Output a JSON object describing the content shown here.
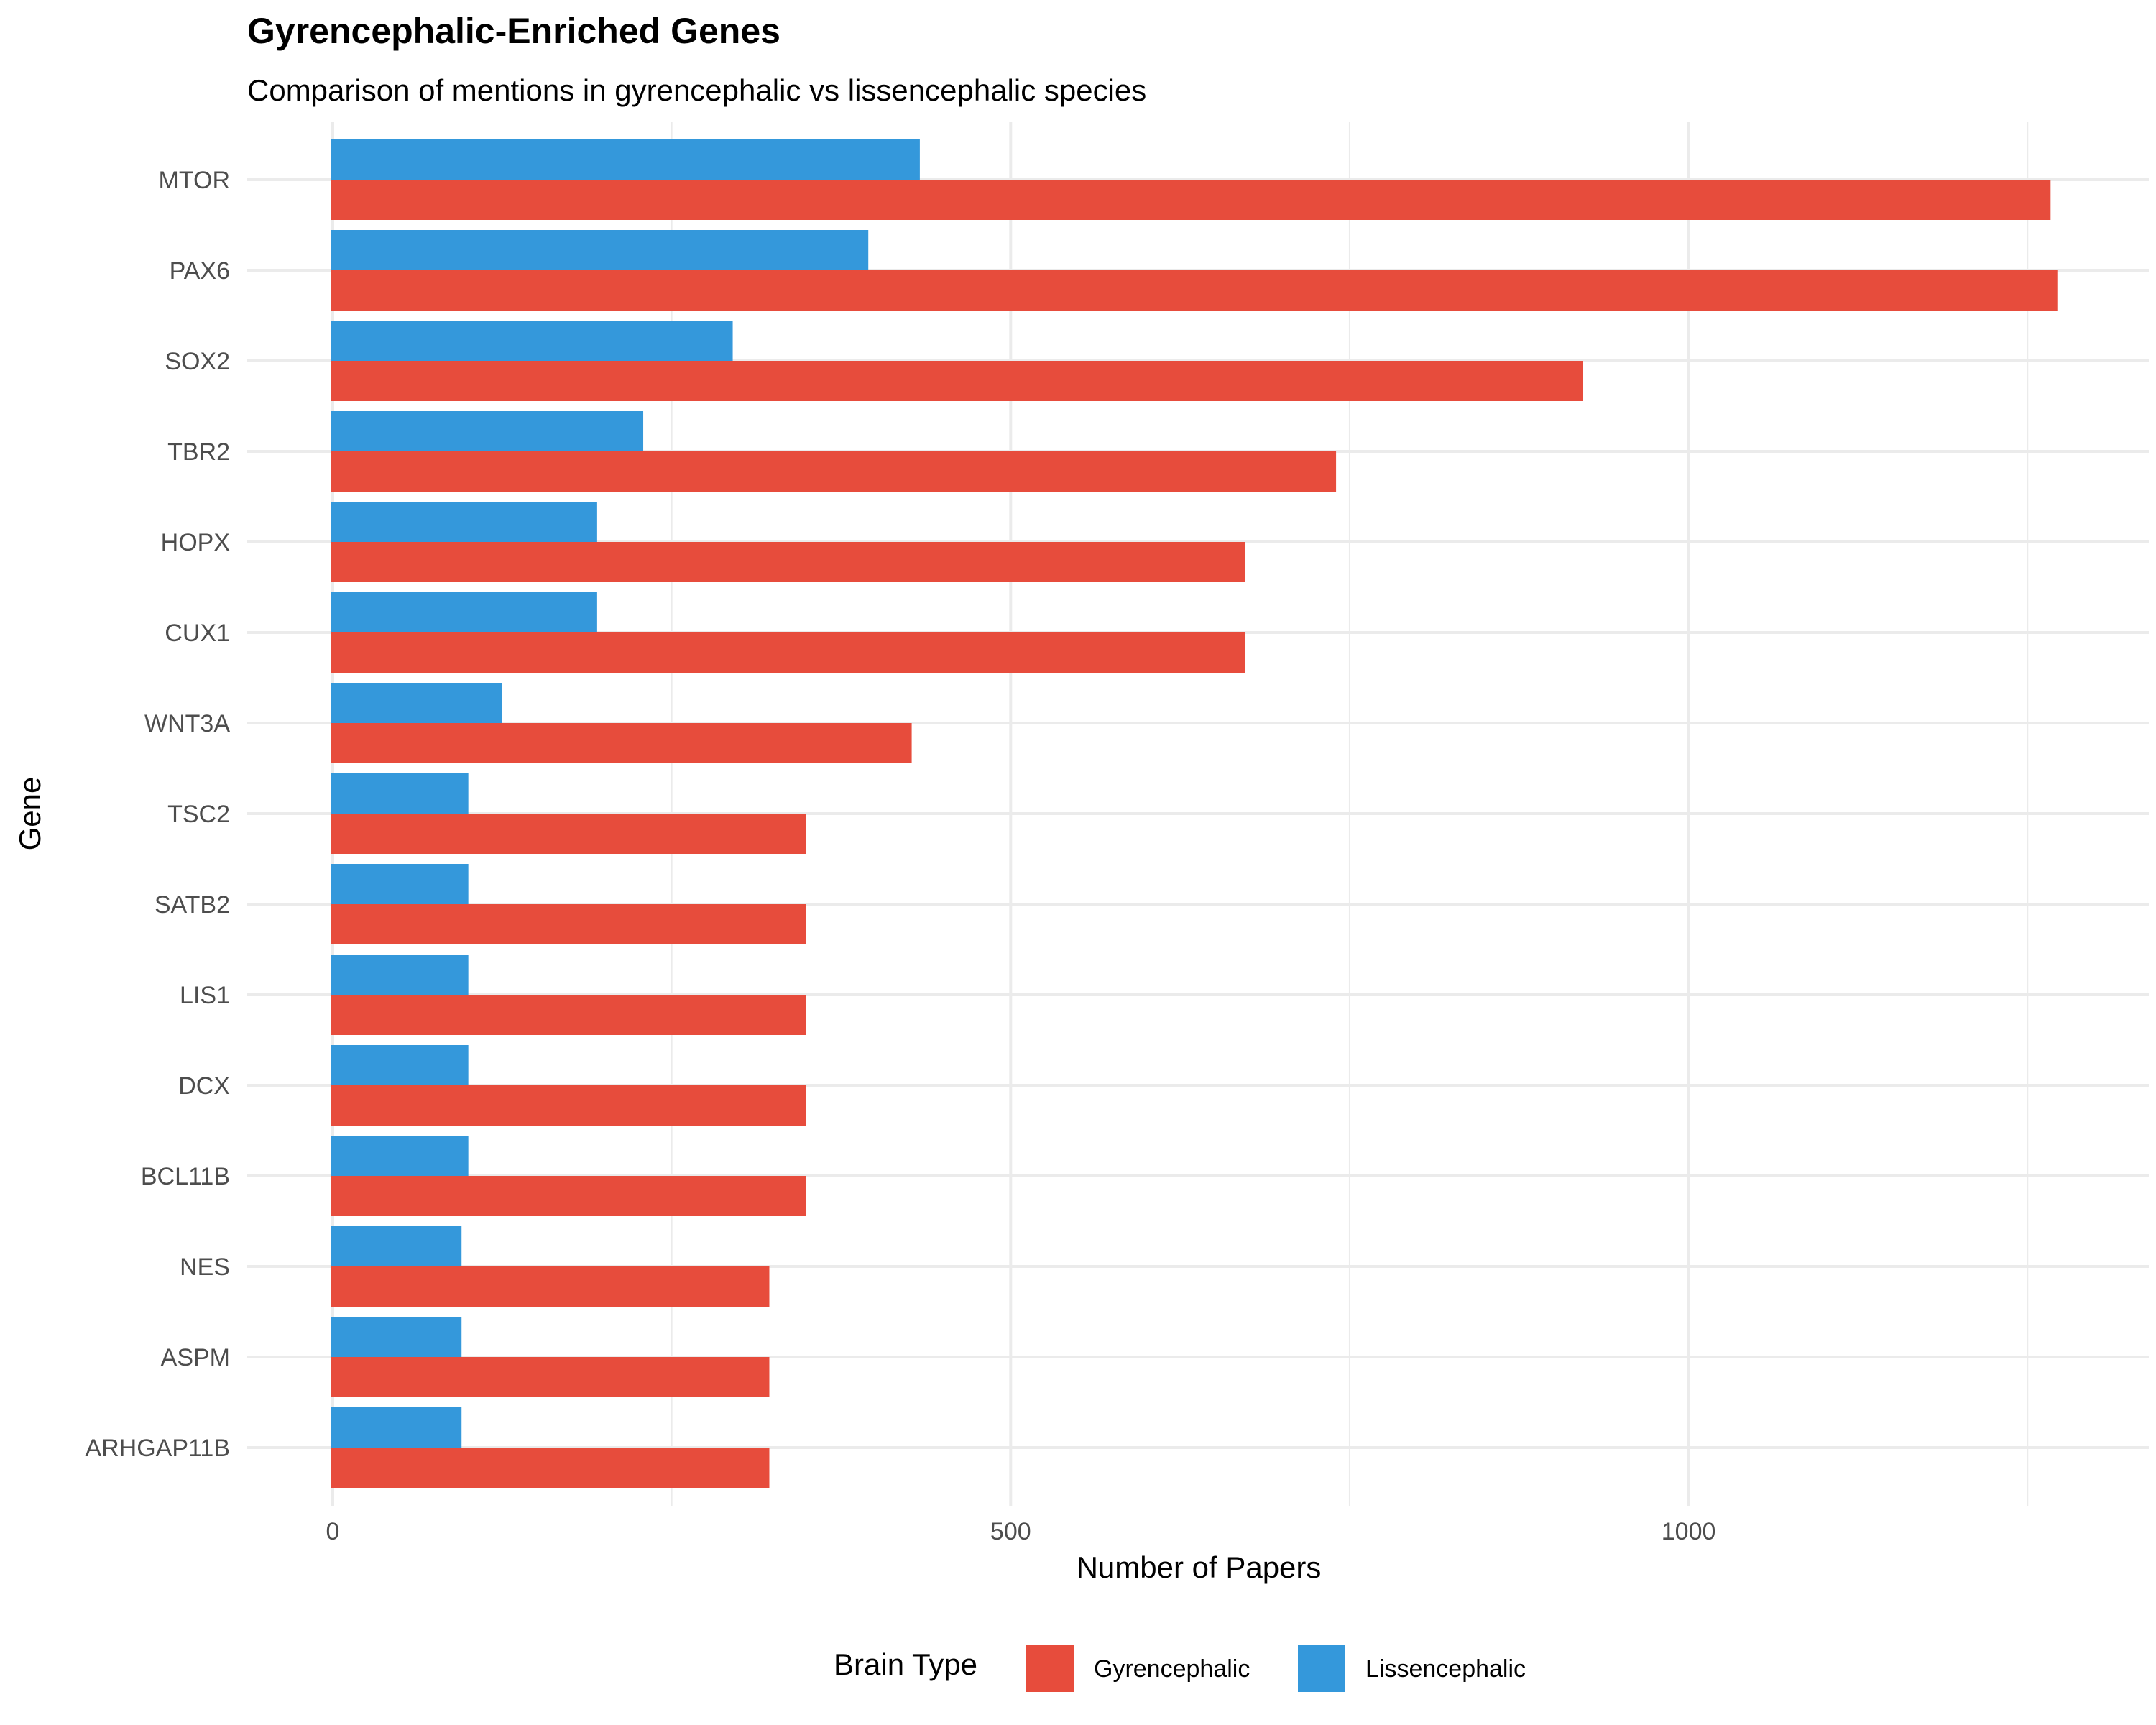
{
  "chart_data": {
    "type": "bar",
    "orientation": "horizontal",
    "title": "Gyrencephalic-Enriched Genes",
    "subtitle": "Comparison of mentions in gyrencephalic vs lissencephalic species",
    "xlabel": "Number of Papers",
    "ylabel": "Gene",
    "xlim": [
      0,
      1300
    ],
    "x_ticks": [
      0,
      500,
      1000
    ],
    "x_tick_labels": [
      "0",
      "500",
      "1000"
    ],
    "grid": true,
    "categories": [
      "MTOR",
      "PAX6",
      "SOX2",
      "TBR2",
      "HOPX",
      "CUX1",
      "WNT3A",
      "TSC2",
      "SATB2",
      "LIS1",
      "DCX",
      "BCL11B",
      "NES",
      "ASPM",
      "ARHGAP11B"
    ],
    "series": [
      {
        "name": "Gyrencephalic",
        "color": "#E74C3C",
        "values": [
          1267,
          1272,
          922,
          740,
          673,
          673,
          427,
          349,
          349,
          349,
          349,
          349,
          322,
          322,
          322
        ]
      },
      {
        "name": "Lissencephalic",
        "color": "#3498DB",
        "values": [
          433,
          395,
          295,
          229,
          195,
          195,
          125,
          100,
          100,
          100,
          100,
          100,
          95,
          95,
          95
        ]
      }
    ],
    "legend": {
      "title": "Brain Type",
      "position": "bottom"
    }
  }
}
